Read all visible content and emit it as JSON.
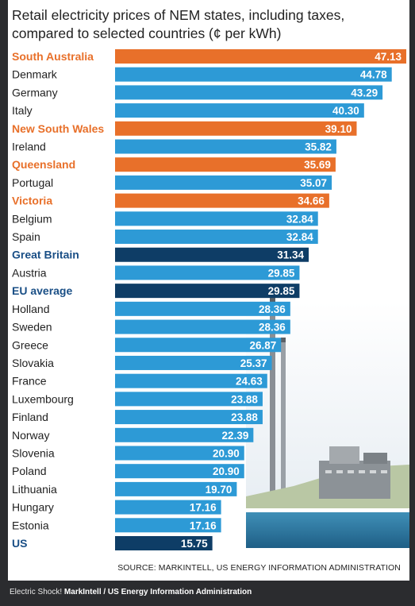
{
  "chart_data": {
    "type": "bar",
    "orientation": "horizontal",
    "title_lines": [
      "Retail electricity prices of NEM states, including taxes,",
      "compared to selected countries (¢ per kWh)"
    ],
    "unit": "¢ per kWh",
    "categories": [
      "South Australia",
      "Denmark",
      "Germany",
      "Italy",
      "New South Wales",
      "Ireland",
      "Queensland",
      "Portugal",
      "Victoria",
      "Belgium",
      "Spain",
      "Great Britain",
      "Austria",
      "EU average",
      "Holland",
      "Sweden",
      "Greece",
      "Slovakia",
      "France",
      "Luxembourg",
      "Finland",
      "Norway",
      "Slovenia",
      "Poland",
      "Lithuania",
      "Hungary",
      "Estonia",
      "US"
    ],
    "values": [
      47.13,
      44.78,
      43.29,
      40.3,
      39.1,
      35.82,
      35.69,
      35.07,
      34.66,
      32.84,
      32.84,
      31.34,
      29.85,
      29.85,
      28.36,
      28.36,
      26.87,
      25.37,
      24.63,
      23.88,
      23.88,
      22.39,
      20.9,
      20.9,
      19.7,
      17.16,
      17.16,
      15.75
    ],
    "value_labels": [
      "47.13",
      "44.78",
      "43.29",
      "40.30",
      "39.10",
      "35.82",
      "35.69",
      "35.07",
      "34.66",
      "32.84",
      "32.84",
      "31.34",
      "29.85",
      "29.85",
      "28.36",
      "28.36",
      "26.87",
      "25.37",
      "24.63",
      "23.88",
      "23.88",
      "22.39",
      "20.90",
      "20.90",
      "19.70",
      "17.16",
      "17.16",
      "15.75"
    ],
    "groups": [
      "nem",
      "country",
      "country",
      "country",
      "nem",
      "country",
      "nem",
      "country",
      "nem",
      "country",
      "country",
      "highlight",
      "country",
      "highlight",
      "country",
      "country",
      "country",
      "country",
      "country",
      "country",
      "country",
      "country",
      "country",
      "country",
      "country",
      "country",
      "country",
      "highlight"
    ],
    "colors": {
      "nem": "#e8702a",
      "country": "#2d9ad6",
      "highlight": "#0e3d66",
      "label_nem": "#e8702a",
      "label_country": "#222222",
      "label_highlight": "#1a4f86"
    },
    "xlim": [
      0,
      47.13
    ],
    "grid": false,
    "legend": "none"
  },
  "source": "SOURCE: MARKINTELL, US ENERGY INFORMATION ADMINISTRATION",
  "caption": {
    "prefix": "Electric Shock! ",
    "credit": "MarkIntell / US Energy Information Administration"
  }
}
